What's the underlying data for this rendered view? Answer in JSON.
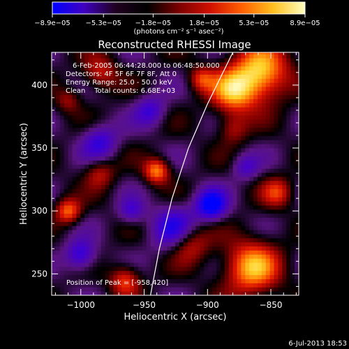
{
  "chart_data": {
    "type": "heatmap",
    "title": "Reconstructed RHESSI Image",
    "xlabel": "Heliocentric X (arcsec)",
    "ylabel": "Heliocentric Y (arcsec)",
    "xlim": [
      -1023,
      -828
    ],
    "ylim": [
      233,
      426
    ],
    "x_ticks": [
      -1000,
      -950,
      -900,
      -850
    ],
    "x_tick_labels": [
      "−1000",
      "−950",
      "−900",
      "−850"
    ],
    "y_ticks": [
      250,
      300,
      350,
      400
    ],
    "y_tick_labels": [
      "250",
      "300",
      "350",
      "400"
    ],
    "colorbar": {
      "range": [
        -8.9e-05,
        8.9e-05
      ],
      "ticks": [
        -8.9e-05,
        -5.3e-05,
        -1.8e-05,
        1.8e-05,
        5.3e-05,
        8.9e-05
      ],
      "tick_labels": [
        "−8.9e−05",
        "−5.3e−05",
        "−1.8e−05",
        "1.8e−05",
        "5.3e−05",
        "8.9e−05"
      ],
      "unit_label": "(photons cm⁻² s⁻¹ asec⁻²)",
      "colors": [
        "#0000ff",
        "#4000c0",
        "#200020",
        "#000000",
        "#7a0000",
        "#d01000",
        "#ff6000",
        "#ffc020",
        "#ffffc0"
      ]
    },
    "annotations": [
      "6-Feb-2005 06:44:28.000 to 06:48:50.000",
      "Detectors: 4F 5F 6F 7F 8F, Att 0",
      "Energy Range: 25.0 - 50.0 keV",
      "Clean    Total counts: 6.68E+03"
    ],
    "peak_text": "Position of Peak = [-958,420]",
    "peak": [
      -958,
      420
    ],
    "limb_curve": [
      [
        -945,
        233
      ],
      [
        -938,
        270
      ],
      [
        -928,
        310
      ],
      [
        -915,
        350
      ],
      [
        -900,
        385
      ],
      [
        -880,
        426
      ]
    ],
    "grid": false,
    "footer_date": "6-Jul-2013 18:53"
  }
}
